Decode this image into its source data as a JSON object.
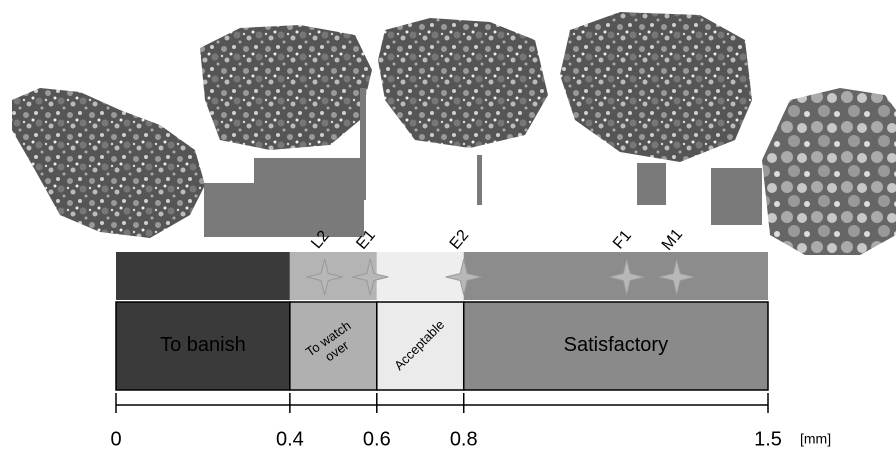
{
  "scale": {
    "min": 0,
    "max": 1.5,
    "ticks": [
      0,
      0.4,
      0.6,
      0.8,
      1.5
    ],
    "unit": "[mm]"
  },
  "zones": [
    {
      "label": [
        "To banish"
      ],
      "from": 0,
      "to": 0.4,
      "color": "#3a3a3a",
      "top_color": "#3a3a3a",
      "rotate": 0,
      "font": 20
    },
    {
      "label": [
        "To watch",
        "over"
      ],
      "from": 0.4,
      "to": 0.6,
      "color": "#b0b0b0",
      "top_color": "#b4b4b4",
      "rotate": -35,
      "font": 13
    },
    {
      "label": [
        "Acceptable"
      ],
      "from": 0.6,
      "to": 0.8,
      "color": "#ebebeb",
      "top_color": "#eeeeee",
      "rotate": -45,
      "font": 13
    },
    {
      "label": [
        "Satisfactory"
      ],
      "from": 0.8,
      "to": 1.5,
      "color": "#8a8a8a",
      "top_color": "#8c8c8c",
      "rotate": 0,
      "font": 20
    }
  ],
  "markers": [
    {
      "label": "L2",
      "value": 0.48
    },
    {
      "label": "E1",
      "value": 0.585
    },
    {
      "label": "E2",
      "value": 0.8
    },
    {
      "label": "F1",
      "value": 1.175
    },
    {
      "label": "M1",
      "value": 1.29
    }
  ]
}
